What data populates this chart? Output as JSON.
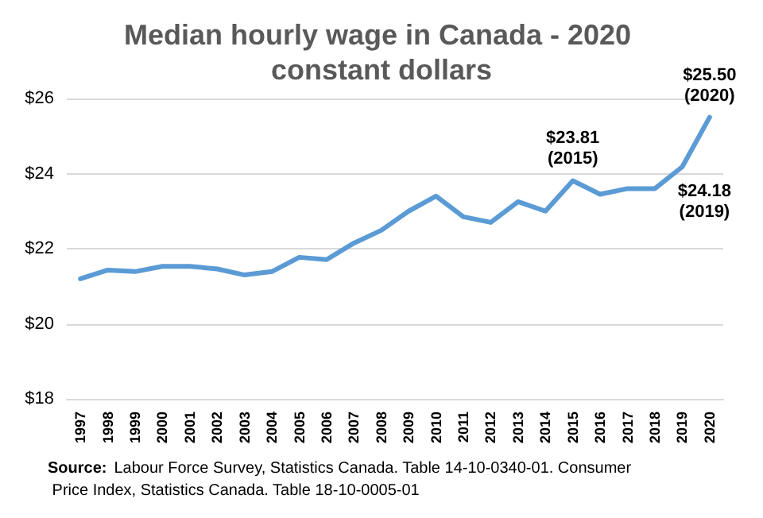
{
  "chart_data": {
    "type": "line",
    "title": "Median hourly wage in Canada - 2020 constant dollars",
    "categories": [
      "1997",
      "1998",
      "1999",
      "2000",
      "2001",
      "2002",
      "2003",
      "2004",
      "2005",
      "2006",
      "2007",
      "2008",
      "2009",
      "2010",
      "2011",
      "2012",
      "2013",
      "2014",
      "2015",
      "2016",
      "2017",
      "2018",
      "2019",
      "2020"
    ],
    "series": [
      {
        "color": "#5b9bd5",
        "values": [
          21.2,
          21.43,
          21.39,
          21.53,
          21.53,
          21.46,
          21.3,
          21.39,
          21.77,
          21.71,
          22.15,
          22.49,
          23.0,
          23.4,
          22.85,
          22.7,
          23.25,
          23.0,
          23.81,
          23.45,
          23.6,
          23.6,
          24.18,
          25.5
        ]
      }
    ],
    "ylim": [
      18,
      26
    ],
    "yticks": [
      {
        "value": 18,
        "label": "$18"
      },
      {
        "value": 20,
        "label": "$20"
      },
      {
        "value": 22,
        "label": "$22"
      },
      {
        "value": 24,
        "label": "$24"
      },
      {
        "value": 26,
        "label": "$26"
      }
    ],
    "grid": "y",
    "marker": "none",
    "line_style": "solid",
    "annotations": [
      {
        "text": "$23.81\n(2015)",
        "x": "2015",
        "y": 23.81
      },
      {
        "text": "$24.18\n(2019)",
        "x": "2019",
        "y": 24.18
      },
      {
        "text": "$25.50\n(2020)",
        "x": "2020",
        "y": 25.5
      },
      "Source: Labour Force Survey, Statistics Canada. Table 14-10-0340-01. Consumer Price Index, Statistics Canada. Table 18-10-0005-01"
    ]
  }
}
